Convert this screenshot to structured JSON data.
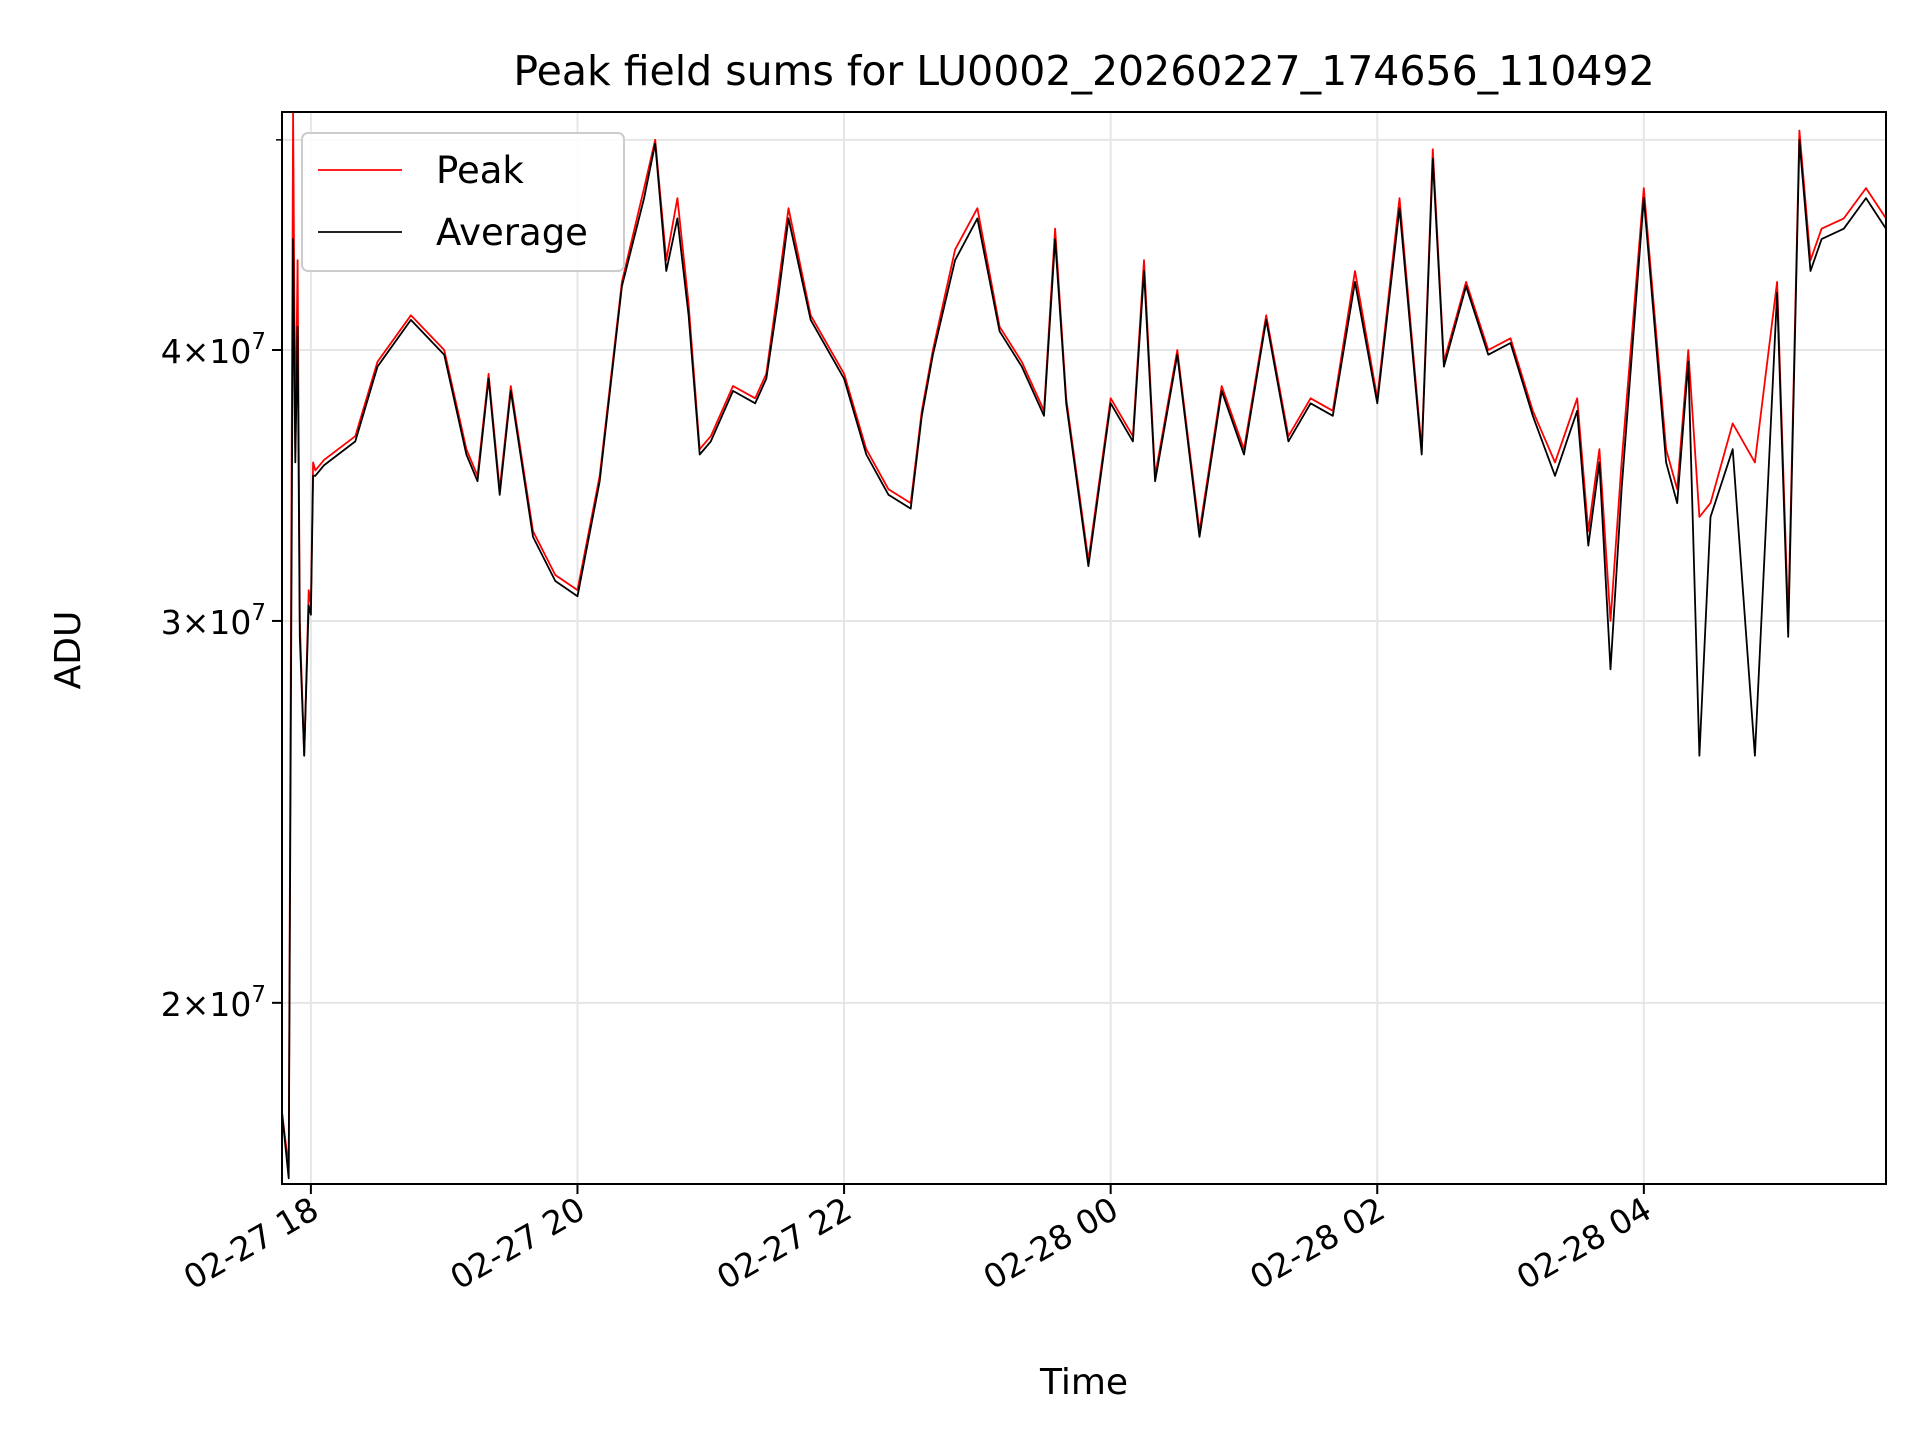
{
  "chart_data": {
    "type": "line",
    "title": "Peak field sums for LU0002_20260227_174656_110492",
    "xlabel": "Time",
    "ylabel": "ADU",
    "y_scale": "log",
    "grid": true,
    "legend_position": "top-left",
    "xlim": [
      "2026-02-27 17:47",
      "2026-02-28 05:49"
    ],
    "ylim": [
      16500000,
      51500000
    ],
    "x_ticks": [
      {
        "value": "2026-02-27 18:00",
        "label": "02-27 18"
      },
      {
        "value": "2026-02-27 20:00",
        "label": "02-27 20"
      },
      {
        "value": "2026-02-27 22:00",
        "label": "02-27 22"
      },
      {
        "value": "2026-02-28 00:00",
        "label": "02-28 00"
      },
      {
        "value": "2026-02-28 02:00",
        "label": "02-28 02"
      },
      {
        "value": "2026-02-28 04:00",
        "label": "02-28 04"
      }
    ],
    "y_ticks": [
      {
        "value": 20000000,
        "mantissa": "2",
        "base": "10",
        "exp": "7"
      },
      {
        "value": 30000000,
        "mantissa": "3",
        "base": "10",
        "exp": "7"
      },
      {
        "value": 40000000,
        "mantissa": "4",
        "base": "10",
        "exp": "7"
      }
    ],
    "y_minor_ticks": [
      50000000
    ],
    "series": [
      {
        "name": "Peak",
        "color": "#ff0000",
        "x": [
          "2026-02-27 17:47",
          "2026-02-27 17:50",
          "2026-02-27 17:52",
          "2026-02-27 17:53",
          "2026-02-27 17:54",
          "2026-02-27 17:55",
          "2026-02-27 17:57",
          "2026-02-27 17:59",
          "2026-02-27 18:00",
          "2026-02-27 18:01",
          "2026-02-27 18:02",
          "2026-02-27 18:05",
          "2026-02-27 18:06",
          "2026-02-27 18:20",
          "2026-02-27 18:30",
          "2026-02-27 18:45",
          "2026-02-27 19:00",
          "2026-02-27 19:10",
          "2026-02-27 19:15",
          "2026-02-27 19:20",
          "2026-02-27 19:25",
          "2026-02-27 19:30",
          "2026-02-27 19:40",
          "2026-02-27 19:50",
          "2026-02-27 20:00",
          "2026-02-27 20:10",
          "2026-02-27 20:20",
          "2026-02-27 20:30",
          "2026-02-27 20:35",
          "2026-02-27 20:40",
          "2026-02-27 20:45",
          "2026-02-27 20:50",
          "2026-02-27 20:55",
          "2026-02-27 21:00",
          "2026-02-27 21:10",
          "2026-02-27 21:20",
          "2026-02-27 21:25",
          "2026-02-27 21:30",
          "2026-02-27 21:35",
          "2026-02-27 21:45",
          "2026-02-27 22:00",
          "2026-02-27 22:10",
          "2026-02-27 22:20",
          "2026-02-27 22:30",
          "2026-02-27 22:35",
          "2026-02-27 22:40",
          "2026-02-27 22:50",
          "2026-02-27 23:00",
          "2026-02-27 23:10",
          "2026-02-27 23:20",
          "2026-02-27 23:30",
          "2026-02-27 23:35",
          "2026-02-27 23:40",
          "2026-02-27 23:50",
          "2026-02-28 00:00",
          "2026-02-28 00:10",
          "2026-02-28 00:15",
          "2026-02-28 00:20",
          "2026-02-28 00:30",
          "2026-02-28 00:40",
          "2026-02-28 00:50",
          "2026-02-28 01:00",
          "2026-02-28 01:10",
          "2026-02-28 01:20",
          "2026-02-28 01:30",
          "2026-02-28 01:40",
          "2026-02-28 01:50",
          "2026-02-28 02:00",
          "2026-02-28 02:10",
          "2026-02-28 02:20",
          "2026-02-28 02:25",
          "2026-02-28 02:30",
          "2026-02-28 02:40",
          "2026-02-28 02:50",
          "2026-02-28 03:00",
          "2026-02-28 03:10",
          "2026-02-28 03:20",
          "2026-02-28 03:30",
          "2026-02-28 03:35",
          "2026-02-28 03:40",
          "2026-02-28 03:45",
          "2026-02-28 03:50",
          "2026-02-28 04:00",
          "2026-02-28 04:10",
          "2026-02-28 04:15",
          "2026-02-28 04:20",
          "2026-02-28 04:25",
          "2026-02-28 04:30",
          "2026-02-28 04:40",
          "2026-02-28 04:50",
          "2026-02-28 05:00",
          "2026-02-28 05:05",
          "2026-02-28 05:10",
          "2026-02-28 05:15",
          "2026-02-28 05:20",
          "2026-02-28 05:30",
          "2026-02-28 05:40",
          "2026-02-28 05:49"
        ],
        "values": [
          17800000,
          16800000,
          51500000,
          36000000,
          44000000,
          30000000,
          26000000,
          31000000,
          30500000,
          35500000,
          35200000,
          35500000,
          35600000,
          36500000,
          39500000,
          41500000,
          40000000,
          36000000,
          35000000,
          39000000,
          34500000,
          38500000,
          33000000,
          31500000,
          31000000,
          35000000,
          43000000,
          47500000,
          50000000,
          44000000,
          47000000,
          42000000,
          36000000,
          36500000,
          38500000,
          38000000,
          39000000,
          42500000,
          46500000,
          41500000,
          39000000,
          36000000,
          34500000,
          34000000,
          37500000,
          40000000,
          44500000,
          46500000,
          41000000,
          39500000,
          37500000,
          45500000,
          38000000,
          32000000,
          38000000,
          36500000,
          44000000,
          35000000,
          40000000,
          33000000,
          38500000,
          36000000,
          41500000,
          36500000,
          38000000,
          37500000,
          43500000,
          38000000,
          47000000,
          36000000,
          49500000,
          39500000,
          43000000,
          40000000,
          40500000,
          37500000,
          35500000,
          38000000,
          33000000,
          36000000,
          30000000,
          35500000,
          47500000,
          36000000,
          34500000,
          40000000,
          33500000,
          34000000,
          37000000,
          35500000,
          43000000,
          30000000,
          50500000,
          44000000,
          45500000,
          46000000,
          47500000,
          46000000
        ]
      },
      {
        "name": "Average",
        "color": "#000000",
        "x": [
          "2026-02-27 17:47",
          "2026-02-27 17:50",
          "2026-02-27 17:52",
          "2026-02-27 17:53",
          "2026-02-27 17:54",
          "2026-02-27 17:55",
          "2026-02-27 17:57",
          "2026-02-27 17:59",
          "2026-02-27 18:00",
          "2026-02-27 18:01",
          "2026-02-27 18:02",
          "2026-02-27 18:05",
          "2026-02-27 18:06",
          "2026-02-27 18:20",
          "2026-02-27 18:30",
          "2026-02-27 18:45",
          "2026-02-27 19:00",
          "2026-02-27 19:10",
          "2026-02-27 19:15",
          "2026-02-27 19:20",
          "2026-02-27 19:25",
          "2026-02-27 19:30",
          "2026-02-27 19:40",
          "2026-02-27 19:50",
          "2026-02-27 20:00",
          "2026-02-27 20:10",
          "2026-02-27 20:20",
          "2026-02-27 20:30",
          "2026-02-27 20:35",
          "2026-02-27 20:40",
          "2026-02-27 20:45",
          "2026-02-27 20:50",
          "2026-02-27 20:55",
          "2026-02-27 21:00",
          "2026-02-27 21:10",
          "2026-02-27 21:20",
          "2026-02-27 21:25",
          "2026-02-27 21:30",
          "2026-02-27 21:35",
          "2026-02-27 21:45",
          "2026-02-27 22:00",
          "2026-02-27 22:10",
          "2026-02-27 22:20",
          "2026-02-27 22:30",
          "2026-02-27 22:35",
          "2026-02-27 22:40",
          "2026-02-27 22:50",
          "2026-02-27 23:00",
          "2026-02-27 23:10",
          "2026-02-27 23:20",
          "2026-02-27 23:30",
          "2026-02-27 23:35",
          "2026-02-27 23:40",
          "2026-02-27 23:50",
          "2026-02-28 00:00",
          "2026-02-28 00:10",
          "2026-02-28 00:15",
          "2026-02-28 00:20",
          "2026-02-28 00:30",
          "2026-02-28 00:40",
          "2026-02-28 00:50",
          "2026-02-28 01:00",
          "2026-02-28 01:10",
          "2026-02-28 01:20",
          "2026-02-28 01:30",
          "2026-02-28 01:40",
          "2026-02-28 01:50",
          "2026-02-28 02:00",
          "2026-02-28 02:10",
          "2026-02-28 02:20",
          "2026-02-28 02:25",
          "2026-02-28 02:30",
          "2026-02-28 02:40",
          "2026-02-28 02:50",
          "2026-02-28 03:00",
          "2026-02-28 03:10",
          "2026-02-28 03:20",
          "2026-02-28 03:30",
          "2026-02-28 03:35",
          "2026-02-28 03:40",
          "2026-02-28 03:45",
          "2026-02-28 03:50",
          "2026-02-28 04:00",
          "2026-02-28 04:10",
          "2026-02-28 04:15",
          "2026-02-28 04:20",
          "2026-02-28 04:25",
          "2026-02-28 04:30",
          "2026-02-28 04:40",
          "2026-02-28 04:50",
          "2026-02-28 05:00",
          "2026-02-28 05:05",
          "2026-02-28 05:10",
          "2026-02-28 05:15",
          "2026-02-28 05:20",
          "2026-02-28 05:30",
          "2026-02-28 05:40",
          "2026-02-28 05:49"
        ],
        "values": [
          17800000,
          16600000,
          45000000,
          35500000,
          41000000,
          29500000,
          26000000,
          30500000,
          30200000,
          35000000,
          35000000,
          35300000,
          35400000,
          36300000,
          39300000,
          41300000,
          39800000,
          35800000,
          34800000,
          38800000,
          34300000,
          38300000,
          32800000,
          31300000,
          30800000,
          34800000,
          42800000,
          47000000,
          49800000,
          43500000,
          46000000,
          41500000,
          35800000,
          36300000,
          38300000,
          37800000,
          38800000,
          42000000,
          46000000,
          41300000,
          38800000,
          35800000,
          34300000,
          33800000,
          37300000,
          39800000,
          44000000,
          46000000,
          40800000,
          39300000,
          37300000,
          45000000,
          37800000,
          31800000,
          37800000,
          36300000,
          43500000,
          34800000,
          39800000,
          32800000,
          38300000,
          35800000,
          41300000,
          36300000,
          37800000,
          37300000,
          43000000,
          37800000,
          46500000,
          35800000,
          49000000,
          39300000,
          42800000,
          39800000,
          40300000,
          37300000,
          35000000,
          37500000,
          32500000,
          35500000,
          28500000,
          34500000,
          47000000,
          35500000,
          34000000,
          39500000,
          26000000,
          33500000,
          36000000,
          26000000,
          42500000,
          29500000,
          50000000,
          43500000,
          45000000,
          45500000,
          47000000,
          45500000
        ]
      }
    ]
  }
}
